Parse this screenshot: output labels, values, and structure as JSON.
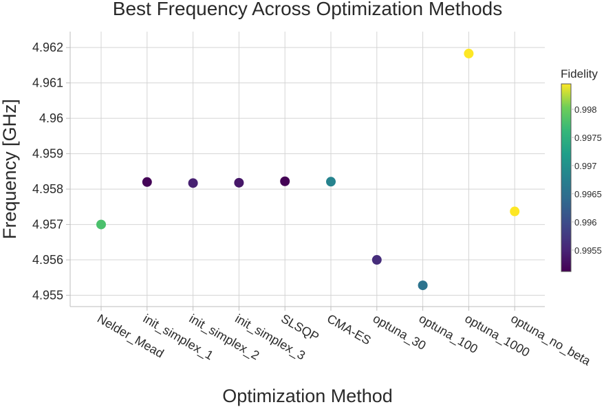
{
  "chart_data": {
    "type": "scatter",
    "title": "Best Frequency Across Optimization Methods",
    "xlabel": "Optimization Method",
    "ylabel": "Frequency [GHz]",
    "categories": [
      "Nelder_Mead",
      "init_simplex_1",
      "init_simplex_2",
      "init_simplex_3",
      "SLSQP",
      "CMA-ES",
      "optuna_30",
      "optuna_100",
      "optuna_1000",
      "optuna_no_beta"
    ],
    "y": [
      4.957,
      4.9582,
      4.95817,
      4.95818,
      4.95822,
      4.95821,
      4.956,
      4.95528,
      4.96183,
      4.95737
    ],
    "fidelity": [
      0.99778,
      0.99515,
      0.99545,
      0.99535,
      0.99513,
      0.9968,
      0.9956,
      0.99655,
      0.99855,
      0.99855
    ],
    "ylim": [
      4.95468,
      4.96245
    ],
    "yticks": [
      4.955,
      4.956,
      4.957,
      4.958,
      4.959,
      4.96,
      4.961,
      4.962
    ],
    "ytick_labels": [
      "4.955",
      "4.956",
      "4.957",
      "4.958",
      "4.959",
      "4.96",
      "4.961",
      "4.962"
    ],
    "grid": true,
    "colorbar": {
      "title": "Fidelity",
      "range": [
        0.99512,
        0.99845
      ],
      "ticks": [
        0.9955,
        0.996,
        0.9965,
        0.997,
        0.9975,
        0.998
      ],
      "tick_labels": [
        "0.9955",
        "0.996",
        "0.9965",
        "0.997",
        "0.9975",
        "0.998"
      ],
      "colormap": "viridis"
    }
  }
}
